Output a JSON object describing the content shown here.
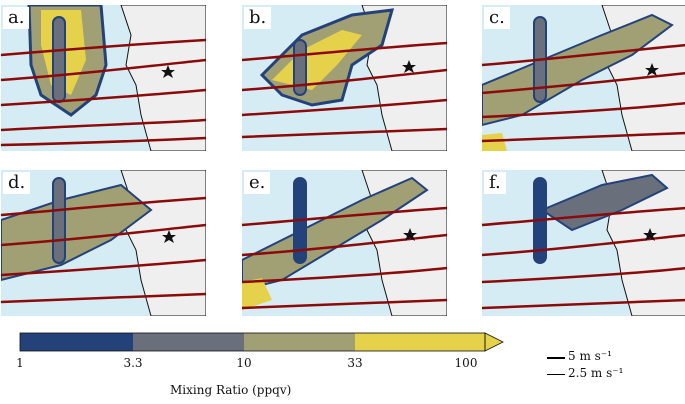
{
  "panels": [
    {
      "id": "a",
      "label": "a."
    },
    {
      "id": "b",
      "label": "b."
    },
    {
      "id": "c",
      "label": "c."
    },
    {
      "id": "d",
      "label": "d."
    },
    {
      "id": "e",
      "label": "e."
    },
    {
      "id": "f",
      "label": "f."
    }
  ],
  "colorbar": {
    "ticks": [
      "1",
      "3.3",
      "10",
      "33",
      "100"
    ],
    "title": "Mixing Ratio (ppqv)",
    "colors": [
      "#24427a",
      "#6a6f7c",
      "#a19f74",
      "#e5d24a"
    ]
  },
  "legend": {
    "items": [
      {
        "label": "5 m s⁻¹"
      },
      {
        "label": "2.5 m s⁻¹"
      }
    ]
  },
  "colors": {
    "ocean": "#d6ecf4",
    "land": "#efefef",
    "streamline": "#8b0a0a"
  }
}
